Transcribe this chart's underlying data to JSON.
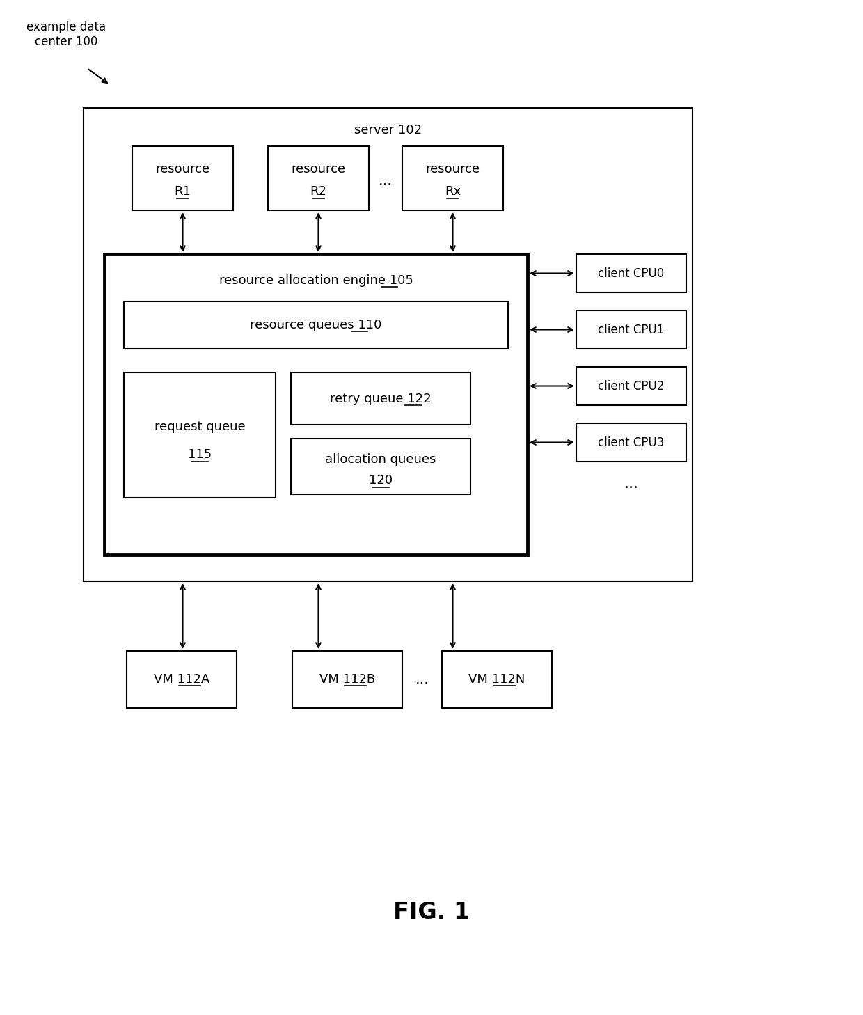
{
  "bg_color": "#ffffff",
  "fig_width": 12.4,
  "fig_height": 14.58,
  "label_example": "example data\ncenter 100",
  "label_server": "server 102",
  "label_rae_pre": "resource allocation engine ",
  "label_rae_num": "105",
  "label_rq_pre": "resource queues ",
  "label_rq_num": "110",
  "label_req_pre": "request queue",
  "label_req_num": "115",
  "label_retry_pre": "retry queue ",
  "label_retry_num": "122",
  "label_alloc_pre": "allocation queues",
  "label_alloc_num": "120",
  "label_r1_top": "resource",
  "label_r1_bot": "R1",
  "label_r2_top": "resource",
  "label_r2_bot": "R2",
  "label_rx_top": "resource",
  "label_rx_bot": "Rx",
  "label_cpu0": "client CPU0",
  "label_cpu1": "client CPU1",
  "label_cpu2": "client CPU2",
  "label_cpu3": "client CPU3",
  "label_vm1": "VM ",
  "label_vm1_num": "112A",
  "label_vm2": "VM ",
  "label_vm2_num": "112B",
  "label_vmn": "VM ",
  "label_vmn_num": "112N",
  "label_fig": "FIG. 1",
  "dots": "..."
}
